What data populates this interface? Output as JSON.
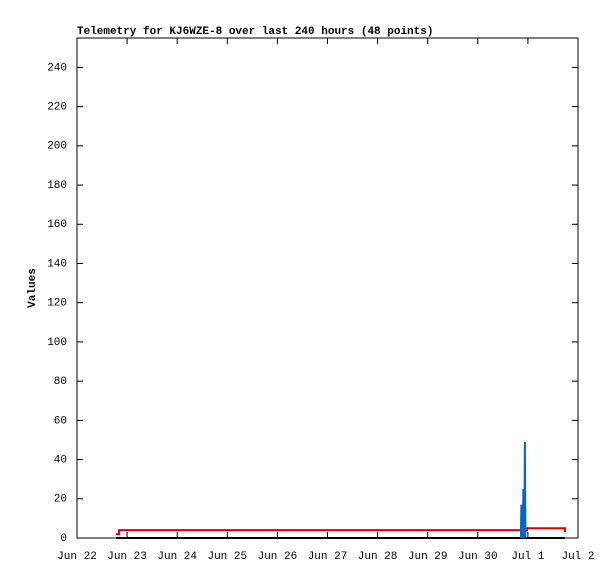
{
  "chart_data": {
    "type": "line",
    "title": "Telemetry for KJ6WZE-8 over last 240 hours (48 points)",
    "y_label": "Values",
    "xlim": [
      0,
      10
    ],
    "xticks": [
      {
        "value": 0,
        "label": "Jun 22"
      },
      {
        "value": 1,
        "label": "Jun 23"
      },
      {
        "value": 2,
        "label": "Jun 24"
      },
      {
        "value": 3,
        "label": "Jun 25"
      },
      {
        "value": 4,
        "label": "Jun 26"
      },
      {
        "value": 5,
        "label": "Jun 27"
      },
      {
        "value": 6,
        "label": "Jun 28"
      },
      {
        "value": 7,
        "label": "Jun 29"
      },
      {
        "value": 8,
        "label": "Jun 30"
      },
      {
        "value": 9,
        "label": "Jul 1"
      },
      {
        "value": 10,
        "label": "Jul 2"
      }
    ],
    "ylim": [
      0,
      255
    ],
    "yticks": [
      0,
      20,
      40,
      60,
      80,
      100,
      120,
      140,
      160,
      180,
      200,
      220,
      240
    ],
    "grid": false,
    "series": [
      {
        "color": "#000000",
        "x": [
          0.78,
          9.74
        ],
        "values": [
          0,
          0
        ]
      },
      {
        "color": "#dd0000",
        "x": [
          0.78,
          0.84,
          0.84,
          8.98,
          8.98,
          9.74,
          9.74
        ],
        "values": [
          2,
          2,
          4,
          4,
          5,
          5,
          3
        ]
      },
      {
        "color": "#0066cc",
        "x": [
          8.86,
          8.87,
          8.9,
          8.91,
          8.93,
          8.94,
          8.95
        ],
        "values": [
          0,
          17,
          0,
          25,
          0,
          49,
          0
        ]
      }
    ]
  }
}
